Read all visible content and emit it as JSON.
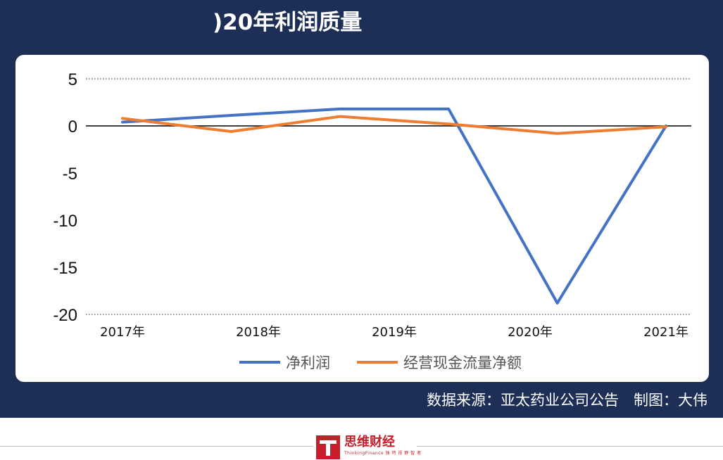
{
  "header": {
    "title": ")20年利润质量"
  },
  "chart_data": {
    "type": "line",
    "categories": [
      "2017年",
      "2018年",
      "2019年",
      "2020年",
      "2021年"
    ],
    "series": [
      {
        "name": "净利润",
        "color": "#4472c4",
        "points": [
          {
            "x": 0,
            "y": 0.4
          },
          {
            "x": 0.78,
            "y": 1.1
          },
          {
            "x": 1.6,
            "y": 1.8
          },
          {
            "x": 2.4,
            "y": 1.8
          },
          {
            "x": 3.2,
            "y": -18.8
          },
          {
            "x": 4.0,
            "y": 0.0
          }
        ]
      },
      {
        "name": "经营现金流量净额",
        "color": "#ed7d31",
        "points": [
          {
            "x": 0,
            "y": 0.8
          },
          {
            "x": 0.8,
            "y": -0.6
          },
          {
            "x": 1.6,
            "y": 1.0
          },
          {
            "x": 2.4,
            "y": 0.2
          },
          {
            "x": 3.2,
            "y": -0.8
          },
          {
            "x": 4.0,
            "y": -0.1
          }
        ]
      }
    ],
    "yticks": [
      "5",
      "0",
      "-5",
      "-10",
      "-15",
      "-20"
    ],
    "ylim": [
      -20,
      5
    ],
    "legend_position": "bottom"
  },
  "footer": {
    "source": "数据来源：亚太药业公司公告　制图：大伟"
  },
  "brand": {
    "name": "思维财经",
    "sub": "ThinkingFinance 独 特 视 野 智 者"
  }
}
